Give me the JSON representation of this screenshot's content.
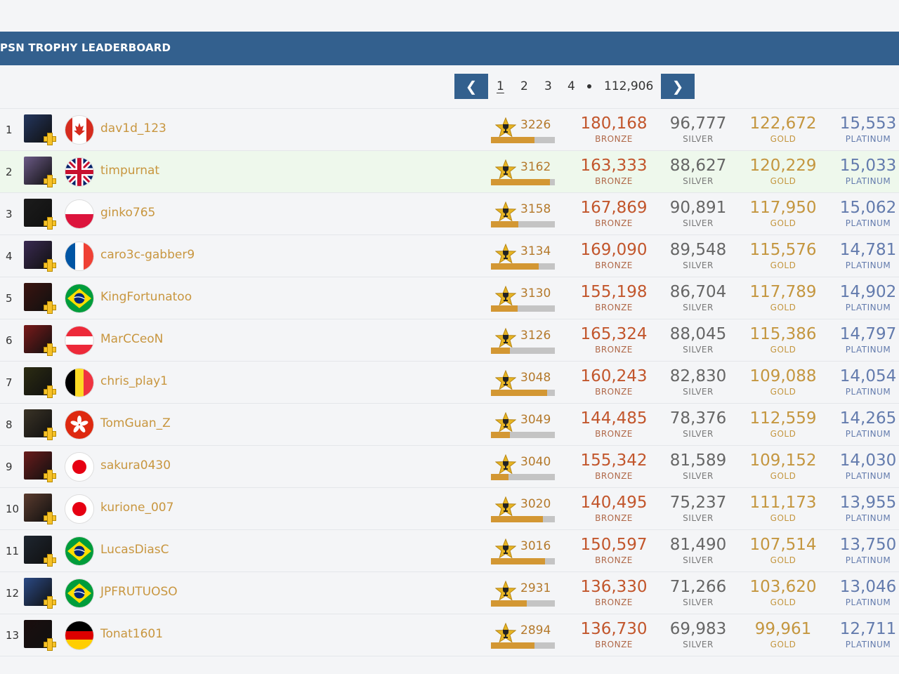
{
  "header": {
    "title": "PSN TROPHY LEADERBOARD"
  },
  "pagination": {
    "prev_icon": "chevron-left-icon",
    "prev_label": "❮",
    "next_icon": "chevron-right-icon",
    "next_label": "❯",
    "pages": [
      "1",
      "2",
      "3",
      "4"
    ],
    "current": "1",
    "last": "112,906"
  },
  "labels": {
    "bronze": "BRONZE",
    "silver": "SILVER",
    "gold": "GOLD",
    "platinum": "PLATINUM"
  },
  "colors": {
    "header_bg": "#33608e",
    "highlight_row": "#eef8ec",
    "level_bar": "#d39733",
    "bronze": "#c2562c",
    "gold": "#c4963f",
    "platinum": "#637bad"
  },
  "players": [
    {
      "rank": "1",
      "name": "dav1d_123",
      "country": "canada",
      "level": "3226",
      "progress": 0.68,
      "bronze": "180,168",
      "silver": "96,777",
      "gold": "122,672",
      "platinum": "15,553"
    },
    {
      "rank": "2",
      "name": "timpurnat",
      "country": "united-kingdom",
      "level": "3162",
      "progress": 0.92,
      "bronze": "163,333",
      "silver": "88,627",
      "gold": "120,229",
      "platinum": "15,033",
      "highlight": true
    },
    {
      "rank": "3",
      "name": "ginko765",
      "country": "poland",
      "level": "3158",
      "progress": 0.43,
      "bronze": "167,869",
      "silver": "90,891",
      "gold": "117,950",
      "platinum": "15,062"
    },
    {
      "rank": "4",
      "name": "caro3c-gabber9",
      "country": "france",
      "level": "3134",
      "progress": 0.75,
      "bronze": "169,090",
      "silver": "89,548",
      "gold": "115,576",
      "platinum": "14,781"
    },
    {
      "rank": "5",
      "name": "KingFortunatoo",
      "country": "brazil",
      "level": "3130",
      "progress": 0.42,
      "bronze": "155,198",
      "silver": "86,704",
      "gold": "117,789",
      "platinum": "14,902"
    },
    {
      "rank": "6",
      "name": "MarCCeoN",
      "country": "austria",
      "level": "3126",
      "progress": 0.3,
      "bronze": "165,324",
      "silver": "88,045",
      "gold": "115,386",
      "platinum": "14,797"
    },
    {
      "rank": "7",
      "name": "chris_play1",
      "country": "belgium",
      "level": "3048",
      "progress": 0.88,
      "bronze": "160,243",
      "silver": "82,830",
      "gold": "109,088",
      "platinum": "14,054"
    },
    {
      "rank": "8",
      "name": "TomGuan_Z",
      "country": "hong-kong",
      "level": "3049",
      "progress": 0.3,
      "bronze": "144,485",
      "silver": "78,376",
      "gold": "112,559",
      "platinum": "14,265"
    },
    {
      "rank": "9",
      "name": "sakura0430",
      "country": "japan",
      "level": "3040",
      "progress": 0.28,
      "bronze": "155,342",
      "silver": "81,589",
      "gold": "109,152",
      "platinum": "14,030"
    },
    {
      "rank": "10",
      "name": "kurione_007",
      "country": "japan",
      "level": "3020",
      "progress": 0.81,
      "bronze": "140,495",
      "silver": "75,237",
      "gold": "111,173",
      "platinum": "13,955"
    },
    {
      "rank": "11",
      "name": "LucasDiasC",
      "country": "brazil",
      "level": "3016",
      "progress": 0.85,
      "bronze": "150,597",
      "silver": "81,490",
      "gold": "107,514",
      "platinum": "13,750"
    },
    {
      "rank": "12",
      "name": "JPFRUTUOSO",
      "country": "brazil",
      "level": "2931",
      "progress": 0.56,
      "bronze": "136,330",
      "silver": "71,266",
      "gold": "103,620",
      "platinum": "13,046"
    },
    {
      "rank": "13",
      "name": "Tonat1601",
      "country": "germany",
      "level": "2894",
      "progress": 0.68,
      "bronze": "136,730",
      "silver": "69,983",
      "gold": "99,961",
      "platinum": "12,711"
    }
  ]
}
